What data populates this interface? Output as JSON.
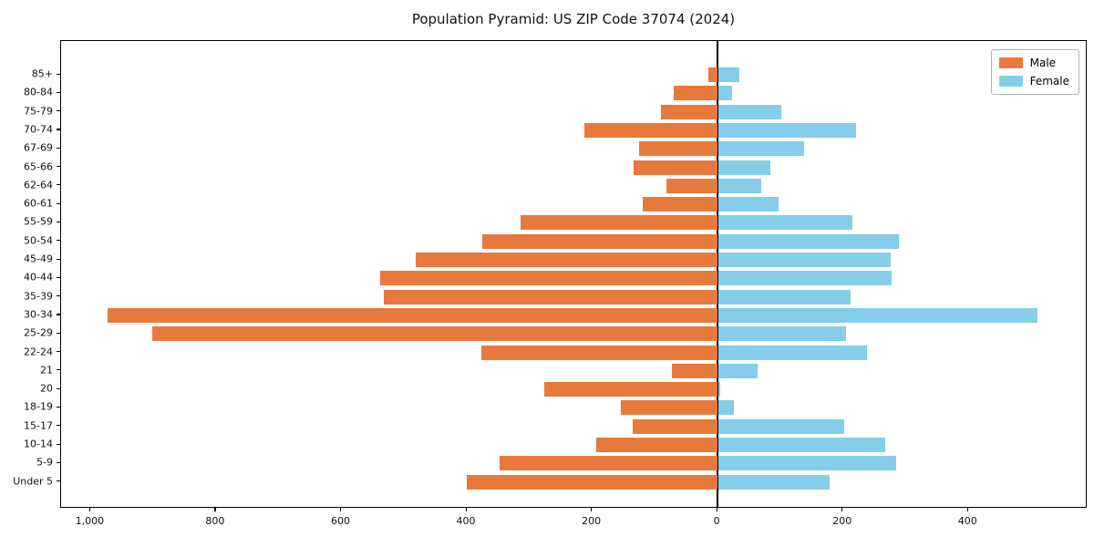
{
  "title": "Population Pyramid: US ZIP Code 37074 (2024)",
  "legend": {
    "male_label": "Male",
    "female_label": "Female"
  },
  "colors": {
    "male": "#E8793D",
    "female": "#85CDE8",
    "axis": "#000000",
    "background": "#ffffff"
  },
  "chart_data": {
    "type": "bar",
    "variant": "population-pyramid",
    "title": "Population Pyramid: US ZIP Code 37074 (2024)",
    "categories_top_to_bottom": [
      "85+",
      "80-84",
      "75-79",
      "70-74",
      "67-69",
      "65-66",
      "62-64",
      "60-61",
      "55-59",
      "50-54",
      "45-49",
      "40-44",
      "35-39",
      "30-34",
      "25-29",
      "22-24",
      "21",
      "20",
      "18-19",
      "15-17",
      "10-14",
      "5-9",
      "Under 5"
    ],
    "series": [
      {
        "name": "Male",
        "side": "left",
        "color": "#E8793D",
        "values": [
          15,
          70,
          90,
          212,
          126,
          134,
          81,
          119,
          314,
          376,
          481,
          538,
          532,
          973,
          901,
          377,
          73,
          277,
          154,
          135,
          194,
          347,
          400
        ]
      },
      {
        "name": "Female",
        "side": "right",
        "color": "#85CDE8",
        "values": [
          33,
          21,
          100,
          220,
          136,
          83,
          68,
          96,
          213,
          288,
          275,
          276,
          210,
          509,
          204,
          237,
          62,
          3,
          25,
          201,
          266,
          283,
          177
        ]
      }
    ],
    "x_axis": {
      "tick_values": [
        -1000,
        -800,
        -600,
        -400,
        -200,
        0,
        200,
        400
      ],
      "tick_labels": [
        "1,000",
        "800",
        "600",
        "400",
        "200",
        "0",
        "200",
        "400"
      ],
      "range": [
        -1047,
        590
      ]
    },
    "y_axis": {
      "label": "",
      "categories_bottom_to_top": [
        "Under 5",
        "5-9",
        "10-14",
        "15-17",
        "18-19",
        "20",
        "21",
        "22-24",
        "25-29",
        "30-34",
        "35-39",
        "40-44",
        "45-49",
        "50-54",
        "55-59",
        "60-61",
        "62-64",
        "65-66",
        "67-69",
        "70-74",
        "75-79",
        "80-84",
        "85+"
      ]
    },
    "legend_position": "upper right",
    "grid": false
  }
}
